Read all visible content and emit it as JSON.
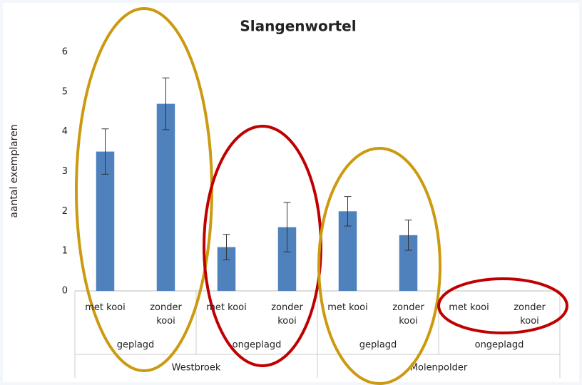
{
  "chart_data": {
    "type": "bar",
    "title": "Slangenwortel",
    "y_label": "aantal exemplaren",
    "categories": [
      "met kooi",
      "zonder kooi",
      "met kooi",
      "zonder kooi",
      "met kooi",
      "zonder kooi",
      "met kooi",
      "zonder kooi"
    ],
    "subgroups": [
      "geplagd",
      "ongeplagd",
      "geplagd",
      "ongeplagd"
    ],
    "groups": [
      "Westbroek",
      "Molenpolder"
    ],
    "values": [
      3.5,
      4.7,
      1.1,
      1.6,
      2.0,
      1.4,
      0,
      0
    ],
    "errors": [
      0.57,
      0.65,
      0.32,
      0.62,
      0.37,
      0.38,
      0,
      0
    ],
    "color": "#4f81bd",
    "ylim": [
      0,
      6
    ],
    "yticks": [
      0,
      1,
      2,
      3,
      4,
      5,
      6
    ],
    "grid": false
  }
}
